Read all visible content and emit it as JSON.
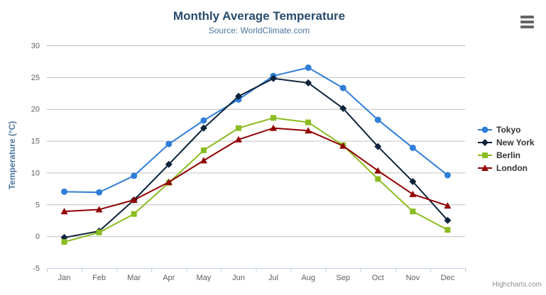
{
  "chart_data": {
    "type": "line",
    "title": "Monthly Average Temperature",
    "subtitle": "Source: WorldClimate.com",
    "xlabel": "",
    "ylabel": "Temperature (°C)",
    "categories": [
      "Jan",
      "Feb",
      "Mar",
      "Apr",
      "May",
      "Jun",
      "Jul",
      "Aug",
      "Sep",
      "Oct",
      "Nov",
      "Dec"
    ],
    "ylim": [
      -5,
      30
    ],
    "yticks": [
      -5,
      0,
      5,
      10,
      15,
      20,
      25,
      30
    ],
    "grid": true,
    "legend_position": "right",
    "series": [
      {
        "name": "Tokyo",
        "color": "#2f7ed8",
        "marker": "circle",
        "values": [
          7.0,
          6.9,
          9.5,
          14.5,
          18.2,
          21.5,
          25.2,
          26.5,
          23.3,
          18.3,
          13.9,
          9.6
        ]
      },
      {
        "name": "New York",
        "color": "#0d233a",
        "marker": "diamond",
        "values": [
          -0.2,
          0.8,
          5.7,
          11.3,
          17.0,
          22.0,
          24.8,
          24.1,
          20.1,
          14.1,
          8.6,
          2.5
        ]
      },
      {
        "name": "Berlin",
        "color": "#8bbc21",
        "marker": "square",
        "values": [
          -0.9,
          0.6,
          3.5,
          8.4,
          13.5,
          17.0,
          18.6,
          17.9,
          14.3,
          9.0,
          3.9,
          1.0
        ]
      },
      {
        "name": "London",
        "color": "#910000",
        "marker": "triangle",
        "values": [
          3.9,
          4.2,
          5.7,
          8.5,
          11.9,
          15.2,
          17.0,
          16.6,
          14.2,
          10.3,
          6.6,
          4.8
        ]
      }
    ]
  },
  "axis_colors": {
    "gridline": "#c0c0c0",
    "axis_line": "#c0d0e0",
    "label": "#606060"
  },
  "export_menu": {
    "tooltip": "Chart context menu"
  },
  "credit": "Highcharts.com"
}
